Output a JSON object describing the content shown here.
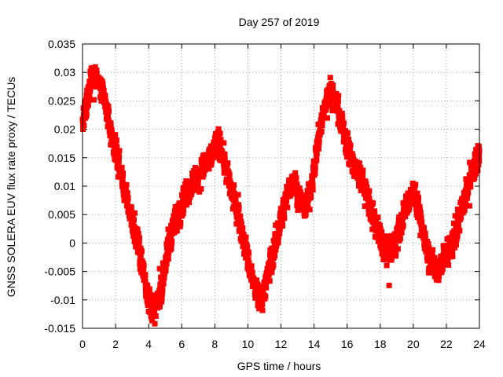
{
  "chart_data": {
    "type": "scatter",
    "title": "Day 257 of 2019",
    "xlabel": "GPS time / hours",
    "ylabel": "GNSS SOLERA EUV flux rate proxy / TECUs",
    "xlim": [
      0,
      24
    ],
    "ylim": [
      -0.015,
      0.035
    ],
    "xticks": [
      "0",
      "2",
      "4",
      "6",
      "8",
      "10",
      "12",
      "14",
      "16",
      "18",
      "20",
      "22",
      "24"
    ],
    "yticks": [
      "-0.015",
      "-0.01",
      "-0.005",
      "0",
      "0.005",
      "0.01",
      "0.015",
      "0.02",
      "0.025",
      "0.03",
      "0.035"
    ],
    "grid": true,
    "marker_color": "#ff0000",
    "trend": [
      [
        0.0,
        0.021
      ],
      [
        0.25,
        0.024
      ],
      [
        0.5,
        0.029
      ],
      [
        0.75,
        0.03
      ],
      [
        1.0,
        0.028
      ],
      [
        1.25,
        0.026
      ],
      [
        1.5,
        0.023
      ],
      [
        1.75,
        0.019
      ],
      [
        2.0,
        0.016
      ],
      [
        2.25,
        0.013
      ],
      [
        2.5,
        0.01
      ],
      [
        2.75,
        0.007
      ],
      [
        3.0,
        0.004
      ],
      [
        3.25,
        0.001
      ],
      [
        3.5,
        -0.002
      ],
      [
        3.75,
        -0.006
      ],
      [
        4.0,
        -0.01
      ],
      [
        4.25,
        -0.012
      ],
      [
        4.5,
        -0.011
      ],
      [
        4.75,
        -0.008
      ],
      [
        5.0,
        -0.004
      ],
      [
        5.25,
        0.0
      ],
      [
        5.5,
        0.003
      ],
      [
        5.75,
        0.005
      ],
      [
        6.0,
        0.007
      ],
      [
        6.25,
        0.009
      ],
      [
        6.5,
        0.01
      ],
      [
        6.75,
        0.011
      ],
      [
        7.0,
        0.012
      ],
      [
        7.25,
        0.013
      ],
      [
        7.5,
        0.014
      ],
      [
        7.75,
        0.015
      ],
      [
        8.0,
        0.017
      ],
      [
        8.25,
        0.018
      ],
      [
        8.5,
        0.015
      ],
      [
        8.75,
        0.012
      ],
      [
        9.0,
        0.009
      ],
      [
        9.25,
        0.007
      ],
      [
        9.5,
        0.004
      ],
      [
        9.75,
        0.001
      ],
      [
        10.0,
        -0.003
      ],
      [
        10.25,
        -0.006
      ],
      [
        10.5,
        -0.009
      ],
      [
        10.75,
        -0.01
      ],
      [
        11.0,
        -0.008
      ],
      [
        11.25,
        -0.005
      ],
      [
        11.5,
        -0.002
      ],
      [
        11.75,
        0.001
      ],
      [
        12.0,
        0.004
      ],
      [
        12.25,
        0.007
      ],
      [
        12.5,
        0.01
      ],
      [
        12.75,
        0.011
      ],
      [
        13.0,
        0.009
      ],
      [
        13.25,
        0.007
      ],
      [
        13.5,
        0.006
      ],
      [
        13.75,
        0.009
      ],
      [
        14.0,
        0.013
      ],
      [
        14.25,
        0.018
      ],
      [
        14.5,
        0.022
      ],
      [
        14.75,
        0.025
      ],
      [
        15.0,
        0.027
      ],
      [
        15.25,
        0.026
      ],
      [
        15.5,
        0.023
      ],
      [
        15.75,
        0.02
      ],
      [
        16.0,
        0.017
      ],
      [
        16.25,
        0.015
      ],
      [
        16.5,
        0.013
      ],
      [
        16.75,
        0.012
      ],
      [
        17.0,
        0.01
      ],
      [
        17.25,
        0.008
      ],
      [
        17.5,
        0.005
      ],
      [
        17.75,
        0.003
      ],
      [
        18.0,
        0.001
      ],
      [
        18.25,
        -0.001
      ],
      [
        18.5,
        -0.002
      ],
      [
        18.75,
        -0.001
      ],
      [
        19.0,
        0.001
      ],
      [
        19.25,
        0.003
      ],
      [
        19.5,
        0.006
      ],
      [
        19.75,
        0.008
      ],
      [
        20.0,
        0.009
      ],
      [
        20.25,
        0.007
      ],
      [
        20.5,
        0.003
      ],
      [
        20.75,
        0.0
      ],
      [
        21.0,
        -0.003
      ],
      [
        21.25,
        -0.004
      ],
      [
        21.5,
        -0.005
      ],
      [
        21.75,
        -0.003
      ],
      [
        22.0,
        -0.002
      ],
      [
        22.25,
        -0.001
      ],
      [
        22.5,
        0.001
      ],
      [
        22.75,
        0.004
      ],
      [
        23.0,
        0.007
      ],
      [
        23.25,
        0.009
      ],
      [
        23.5,
        0.012
      ],
      [
        23.75,
        0.014
      ],
      [
        24.0,
        0.016
      ]
    ]
  }
}
